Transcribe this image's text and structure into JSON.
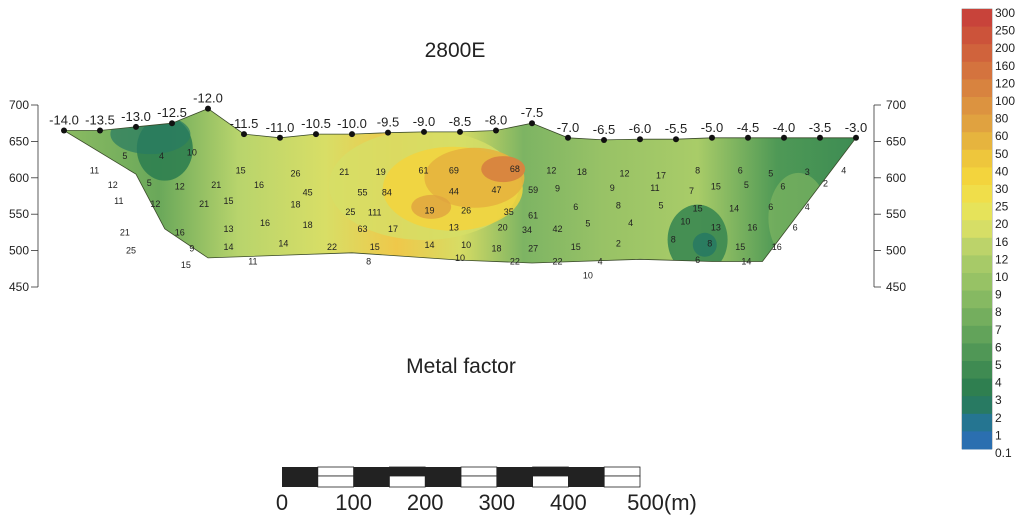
{
  "chart_data": {
    "type": "heatmap",
    "title": "2800E",
    "subtitle": "Metal factor",
    "x_stations": [
      "-14.0",
      "-13.5",
      "-13.0",
      "-12.5",
      "-12.0",
      "-11.5",
      "-11.0",
      "-10.5",
      "-10.0",
      "-9.5",
      "-9.0",
      "-8.5",
      "-8.0",
      "-7.5",
      "-7.0",
      "-6.5",
      "-6.0",
      "-5.5",
      "-5.0",
      "-4.5",
      "-4.0",
      "-3.5",
      "-3.0"
    ],
    "y_ticks": [
      700,
      650,
      600,
      550,
      500,
      450
    ],
    "y_range": [
      450,
      700
    ],
    "station_range": [
      -14.0,
      -3.0
    ],
    "surface_elevation": [
      665,
      665,
      670,
      675,
      695,
      660,
      655,
      660,
      660,
      662,
      663,
      663,
      665,
      675,
      655,
      652,
      653,
      653,
      655,
      655,
      655,
      655,
      655
    ],
    "section_bottom": [
      {
        "station": -14.0,
        "elev": 665
      },
      {
        "station": -13.0,
        "elev": 605
      },
      {
        "station": -12.6,
        "elev": 530
      },
      {
        "station": -12.0,
        "elev": 490
      },
      {
        "station": -10.0,
        "elev": 497
      },
      {
        "station": -8.5,
        "elev": 487
      },
      {
        "station": -7.5,
        "elev": 483
      },
      {
        "station": -6.0,
        "elev": 488
      },
      {
        "station": -5.0,
        "elev": 485
      },
      {
        "station": -4.3,
        "elev": 485
      },
      {
        "station": -3.0,
        "elev": 655
      }
    ],
    "color_scale": {
      "labels": [
        "300",
        "250",
        "200",
        "160",
        "120",
        "100",
        "80",
        "60",
        "50",
        "40",
        "30",
        "25",
        "20",
        "16",
        "12",
        "10",
        "9",
        "8",
        "7",
        "6",
        "5",
        "4",
        "3",
        "2",
        "1",
        "0.1"
      ],
      "colors": [
        "#c8433a",
        "#cc533a",
        "#d0633c",
        "#d4733e",
        "#d8833f",
        "#dc9340",
        "#e0a240",
        "#e6b43e",
        "#eec63c",
        "#f3d43d",
        "#f0de4a",
        "#e6e35a",
        "#d6de66",
        "#bcd36a",
        "#a7ca68",
        "#97c265",
        "#86b962",
        "#74ae5e",
        "#62a35a",
        "#509756",
        "#3f8b52",
        "#2f7f50",
        "#287a62",
        "#257591",
        "#2b6fb0",
        "#3a6fbd"
      ]
    },
    "contour_values": [
      {
        "v": "5",
        "s": -13.0,
        "e": 630
      },
      {
        "v": "4",
        "s": -12.4,
        "e": 630
      },
      {
        "v": "10",
        "s": -11.9,
        "e": 635
      },
      {
        "v": "11",
        "s": -13.5,
        "e": 610
      },
      {
        "v": "12",
        "s": -13.2,
        "e": 590
      },
      {
        "v": "5",
        "s": -12.6,
        "e": 593
      },
      {
        "v": "12",
        "s": -12.1,
        "e": 588
      },
      {
        "v": "11",
        "s": -13.1,
        "e": 568
      },
      {
        "v": "12",
        "s": -12.5,
        "e": 564
      },
      {
        "v": "21",
        "s": -11.7,
        "e": 564
      },
      {
        "v": "21",
        "s": -13.0,
        "e": 525
      },
      {
        "v": "16",
        "s": -12.1,
        "e": 525
      },
      {
        "v": "13",
        "s": -11.3,
        "e": 530
      },
      {
        "v": "25",
        "s": -12.9,
        "e": 500
      },
      {
        "v": "9",
        "s": -11.9,
        "e": 503
      },
      {
        "v": "14",
        "s": -11.3,
        "e": 505
      },
      {
        "v": "15",
        "s": -12.0,
        "e": 480
      },
      {
        "v": "11",
        "s": -10.9,
        "e": 485
      },
      {
        "v": "15",
        "s": -11.1,
        "e": 610
      },
      {
        "v": "21",
        "s": -11.5,
        "e": 590
      },
      {
        "v": "16",
        "s": -10.8,
        "e": 590
      },
      {
        "v": "15",
        "s": -11.3,
        "e": 568
      },
      {
        "v": "16",
        "s": -10.7,
        "e": 538
      },
      {
        "v": "14",
        "s": -10.4,
        "e": 510
      },
      {
        "v": "26",
        "s": -10.2,
        "e": 606
      },
      {
        "v": "45",
        "s": -10.0,
        "e": 580
      },
      {
        "v": "18",
        "s": -10.2,
        "e": 563
      },
      {
        "v": "18",
        "s": -10.0,
        "e": 535
      },
      {
        "v": "22",
        "s": -9.6,
        "e": 505
      },
      {
        "v": "21",
        "s": -9.4,
        "e": 608
      },
      {
        "v": "19",
        "s": -8.8,
        "e": 608
      },
      {
        "v": "55",
        "s": -9.1,
        "e": 580
      },
      {
        "v": "84",
        "s": -8.7,
        "e": 580
      },
      {
        "v": "25",
        "s": -9.3,
        "e": 553
      },
      {
        "v": "111",
        "s": -8.9,
        "e": 552
      },
      {
        "v": "63",
        "s": -9.1,
        "e": 530
      },
      {
        "v": "17",
        "s": -8.6,
        "e": 530
      },
      {
        "v": "15",
        "s": -8.9,
        "e": 505
      },
      {
        "v": "8",
        "s": -9.0,
        "e": 485
      },
      {
        "v": "61",
        "s": -8.1,
        "e": 610
      },
      {
        "v": "69",
        "s": -7.6,
        "e": 610
      },
      {
        "v": "68",
        "s": -6.6,
        "e": 612
      },
      {
        "v": "44",
        "s": -7.6,
        "e": 581
      },
      {
        "v": "47",
        "s": -6.9,
        "e": 583
      },
      {
        "v": "59",
        "s": -6.3,
        "e": 583
      },
      {
        "v": "19",
        "s": -8.0,
        "e": 555
      },
      {
        "v": "26",
        "s": -7.4,
        "e": 555
      },
      {
        "v": "35",
        "s": -6.7,
        "e": 553
      },
      {
        "v": "61",
        "s": -6.3,
        "e": 548
      },
      {
        "v": "13",
        "s": -7.6,
        "e": 532
      },
      {
        "v": "20",
        "s": -6.8,
        "e": 532
      },
      {
        "v": "34",
        "s": -6.4,
        "e": 528
      },
      {
        "v": "42",
        "s": -5.9,
        "e": 530
      },
      {
        "v": "14",
        "s": -8.0,
        "e": 508
      },
      {
        "v": "10",
        "s": -7.4,
        "e": 508
      },
      {
        "v": "18",
        "s": -6.9,
        "e": 503
      },
      {
        "v": "27",
        "s": -6.3,
        "e": 503
      },
      {
        "v": "15",
        "s": -5.6,
        "e": 505
      },
      {
        "v": "10",
        "s": -7.5,
        "e": 490
      },
      {
        "v": "22",
        "s": -6.6,
        "e": 485
      },
      {
        "v": "22",
        "s": -5.9,
        "e": 485
      },
      {
        "v": "4",
        "s": -5.2,
        "e": 485
      },
      {
        "v": "10",
        "s": -5.4,
        "e": 466
      },
      {
        "v": "12",
        "s": -6.0,
        "e": 610
      },
      {
        "v": "9",
        "s": -5.9,
        "e": 585
      },
      {
        "v": "18",
        "s": -5.5,
        "e": 608
      },
      {
        "v": "12",
        "s": -4.8,
        "e": 606
      },
      {
        "v": "17",
        "s": -4.2,
        "e": 603
      },
      {
        "v": "9",
        "s": -5.0,
        "e": 586
      },
      {
        "v": "11",
        "s": -4.3,
        "e": 586
      },
      {
        "v": "7",
        "s": -3.7,
        "e": 582
      },
      {
        "v": "6",
        "s": -5.6,
        "e": 560
      },
      {
        "v": "8",
        "s": -4.9,
        "e": 562
      },
      {
        "v": "5",
        "s": -4.2,
        "e": 562
      },
      {
        "v": "10",
        "s": -3.8,
        "e": 540
      },
      {
        "v": "5",
        "s": -5.4,
        "e": 537
      },
      {
        "v": "4",
        "s": -4.7,
        "e": 538
      },
      {
        "v": "8",
        "s": -4.0,
        "e": 515
      },
      {
        "v": "2",
        "s": -4.9,
        "e": 510
      },
      {
        "v": "6",
        "s": -3.6,
        "e": 487
      },
      {
        "v": "8",
        "s": -3.6,
        "e": 610
      },
      {
        "v": "6",
        "s": -2.9,
        "e": 610
      },
      {
        "v": "5",
        "s": -2.4,
        "e": 606
      },
      {
        "v": "3",
        "s": -1.8,
        "e": 608
      },
      {
        "v": "4",
        "s": -1.2,
        "e": 610
      },
      {
        "v": "15",
        "s": -3.3,
        "e": 588
      },
      {
        "v": "5",
        "s": -2.8,
        "e": 590
      },
      {
        "v": "6",
        "s": -2.2,
        "e": 588
      },
      {
        "v": "2",
        "s": -1.5,
        "e": 592
      },
      {
        "v": "15",
        "s": -3.6,
        "e": 558
      },
      {
        "v": "14",
        "s": -3.0,
        "e": 558
      },
      {
        "v": "6",
        "s": -2.4,
        "e": 560
      },
      {
        "v": "4",
        "s": -1.8,
        "e": 560
      },
      {
        "v": "13",
        "s": -3.3,
        "e": 532
      },
      {
        "v": "16",
        "s": -2.7,
        "e": 532
      },
      {
        "v": "6",
        "s": -2.0,
        "e": 532
      },
      {
        "v": "8",
        "s": -3.4,
        "e": 510
      },
      {
        "v": "15",
        "s": -2.9,
        "e": 505
      },
      {
        "v": "16",
        "s": -2.3,
        "e": 505
      },
      {
        "v": "14",
        "s": -2.8,
        "e": 485
      }
    ],
    "scale_bar": {
      "labels": [
        "0",
        "100",
        "200",
        "300",
        "400",
        "500(m)"
      ],
      "segments": 5
    }
  }
}
